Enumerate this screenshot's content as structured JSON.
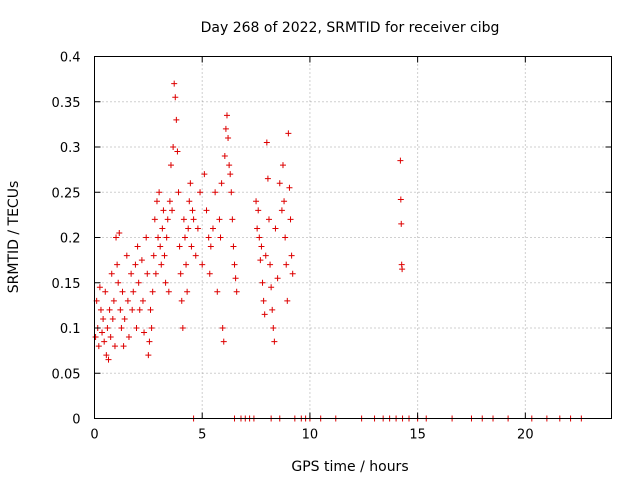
{
  "chart_data": {
    "type": "scatter",
    "title": "Day 268 of 2022, SRMTID for receiver cibg",
    "xlabel": "GPS time / hours",
    "ylabel": "SRMTID / TECUs",
    "xlim": [
      0,
      24
    ],
    "ylim": [
      0,
      0.4
    ],
    "xticks": [
      0,
      5,
      10,
      15,
      20
    ],
    "yticks": [
      0,
      0.05,
      0.1,
      0.15,
      0.2,
      0.25,
      0.3,
      0.35,
      0.4
    ],
    "xtick_labels": [
      "0",
      "5",
      "10",
      "15",
      "20"
    ],
    "ytick_labels": [
      "0",
      "0.05",
      "0.1",
      "0.15",
      "0.2",
      "0.25",
      "0.3",
      "0.35",
      "0.4"
    ],
    "grid": true,
    "marker": "+",
    "color": "#dd0000",
    "series": [
      {
        "name": "SRMTID",
        "points": [
          [
            0.05,
            0.09
          ],
          [
            0.1,
            0.13
          ],
          [
            0.15,
            0.1
          ],
          [
            0.2,
            0.08
          ],
          [
            0.25,
            0.145
          ],
          [
            0.3,
            0.12
          ],
          [
            0.35,
            0.095
          ],
          [
            0.4,
            0.11
          ],
          [
            0.45,
            0.085
          ],
          [
            0.5,
            0.14
          ],
          [
            0.55,
            0.07
          ],
          [
            0.6,
            0.1
          ],
          [
            0.65,
            0.065
          ],
          [
            0.7,
            0.12
          ],
          [
            0.75,
            0.09
          ],
          [
            0.8,
            0.16
          ],
          [
            0.85,
            0.11
          ],
          [
            0.9,
            0.13
          ],
          [
            0.95,
            0.08
          ],
          [
            1.0,
            0.2
          ],
          [
            1.05,
            0.17
          ],
          [
            1.1,
            0.15
          ],
          [
            1.15,
            0.205
          ],
          [
            1.2,
            0.12
          ],
          [
            1.25,
            0.1
          ],
          [
            1.3,
            0.14
          ],
          [
            1.35,
            0.08
          ],
          [
            1.4,
            0.11
          ],
          [
            1.5,
            0.18
          ],
          [
            1.55,
            0.13
          ],
          [
            1.6,
            0.09
          ],
          [
            1.7,
            0.16
          ],
          [
            1.75,
            0.12
          ],
          [
            1.8,
            0.14
          ],
          [
            1.9,
            0.17
          ],
          [
            1.95,
            0.1
          ],
          [
            2.0,
            0.19
          ],
          [
            2.05,
            0.15
          ],
          [
            2.1,
            0.12
          ],
          [
            2.2,
            0.175
          ],
          [
            2.25,
            0.13
          ],
          [
            2.3,
            0.095
          ],
          [
            2.4,
            0.2
          ],
          [
            2.45,
            0.16
          ],
          [
            2.5,
            0.07
          ],
          [
            2.55,
            0.085
          ],
          [
            2.6,
            0.12
          ],
          [
            2.65,
            0.1
          ],
          [
            2.7,
            0.14
          ],
          [
            2.75,
            0.18
          ],
          [
            2.8,
            0.22
          ],
          [
            2.85,
            0.16
          ],
          [
            2.9,
            0.24
          ],
          [
            2.95,
            0.2
          ],
          [
            3.0,
            0.25
          ],
          [
            3.05,
            0.19
          ],
          [
            3.1,
            0.17
          ],
          [
            3.15,
            0.21
          ],
          [
            3.2,
            0.23
          ],
          [
            3.25,
            0.18
          ],
          [
            3.3,
            0.15
          ],
          [
            3.35,
            0.2
          ],
          [
            3.4,
            0.22
          ],
          [
            3.45,
            0.14
          ],
          [
            3.5,
            0.24
          ],
          [
            3.55,
            0.28
          ],
          [
            3.6,
            0.23
          ],
          [
            3.65,
            0.3
          ],
          [
            3.7,
            0.37
          ],
          [
            3.75,
            0.355
          ],
          [
            3.8,
            0.33
          ],
          [
            3.85,
            0.295
          ],
          [
            3.9,
            0.25
          ],
          [
            3.95,
            0.19
          ],
          [
            4.0,
            0.16
          ],
          [
            4.05,
            0.13
          ],
          [
            4.1,
            0.1
          ],
          [
            4.15,
            0.22
          ],
          [
            4.2,
            0.2
          ],
          [
            4.25,
            0.17
          ],
          [
            4.3,
            0.14
          ],
          [
            4.35,
            0.21
          ],
          [
            4.4,
            0.24
          ],
          [
            4.45,
            0.26
          ],
          [
            4.5,
            0.19
          ],
          [
            4.55,
            0.23
          ],
          [
            4.6,
            0.22
          ],
          [
            4.7,
            0.18
          ],
          [
            4.8,
            0.21
          ],
          [
            4.9,
            0.25
          ],
          [
            5.0,
            0.17
          ],
          [
            5.1,
            0.27
          ],
          [
            5.2,
            0.23
          ],
          [
            5.3,
            0.2
          ],
          [
            5.35,
            0.16
          ],
          [
            5.4,
            0.19
          ],
          [
            5.5,
            0.21
          ],
          [
            5.6,
            0.25
          ],
          [
            5.7,
            0.14
          ],
          [
            5.8,
            0.22
          ],
          [
            5.85,
            0.2
          ],
          [
            5.9,
            0.26
          ],
          [
            5.95,
            0.1
          ],
          [
            6.0,
            0.085
          ],
          [
            6.05,
            0.29
          ],
          [
            6.1,
            0.32
          ],
          [
            6.15,
            0.335
          ],
          [
            6.2,
            0.31
          ],
          [
            6.25,
            0.28
          ],
          [
            6.3,
            0.27
          ],
          [
            6.35,
            0.25
          ],
          [
            6.4,
            0.22
          ],
          [
            6.45,
            0.19
          ],
          [
            6.5,
            0.17
          ],
          [
            6.55,
            0.155
          ],
          [
            6.6,
            0.14
          ],
          [
            7.5,
            0.24
          ],
          [
            7.55,
            0.21
          ],
          [
            7.6,
            0.23
          ],
          [
            7.65,
            0.2
          ],
          [
            7.7,
            0.175
          ],
          [
            7.75,
            0.19
          ],
          [
            7.8,
            0.15
          ],
          [
            7.85,
            0.13
          ],
          [
            7.9,
            0.115
          ],
          [
            7.95,
            0.18
          ],
          [
            8.0,
            0.305
          ],
          [
            8.05,
            0.265
          ],
          [
            8.1,
            0.22
          ],
          [
            8.15,
            0.17
          ],
          [
            8.2,
            0.145
          ],
          [
            8.25,
            0.12
          ],
          [
            8.3,
            0.1
          ],
          [
            8.35,
            0.085
          ],
          [
            8.4,
            0.21
          ],
          [
            8.5,
            0.155
          ],
          [
            8.6,
            0.26
          ],
          [
            8.7,
            0.23
          ],
          [
            8.75,
            0.28
          ],
          [
            8.8,
            0.24
          ],
          [
            8.85,
            0.2
          ],
          [
            8.9,
            0.17
          ],
          [
            8.95,
            0.13
          ],
          [
            9.0,
            0.315
          ],
          [
            9.05,
            0.255
          ],
          [
            9.1,
            0.22
          ],
          [
            9.15,
            0.18
          ],
          [
            9.2,
            0.16
          ],
          [
            14.2,
            0.285
          ],
          [
            14.22,
            0.242
          ],
          [
            14.24,
            0.215
          ],
          [
            14.26,
            0.17
          ],
          [
            14.28,
            0.165
          ],
          [
            4.6,
            0
          ],
          [
            6.5,
            0
          ],
          [
            6.8,
            0
          ],
          [
            7.0,
            0
          ],
          [
            7.2,
            0
          ],
          [
            7.4,
            0
          ],
          [
            8.2,
            0
          ],
          [
            8.6,
            0
          ],
          [
            9.3,
            0
          ],
          [
            9.6,
            0
          ],
          [
            9.8,
            0
          ],
          [
            10.0,
            0
          ],
          [
            10.5,
            0
          ],
          [
            11.2,
            0
          ],
          [
            12.4,
            0
          ],
          [
            13.0,
            0
          ],
          [
            13.4,
            0
          ],
          [
            13.7,
            0
          ],
          [
            14.0,
            0
          ],
          [
            14.3,
            0
          ],
          [
            14.6,
            0
          ],
          [
            15.0,
            0
          ],
          [
            15.4,
            0
          ],
          [
            16.6,
            0
          ],
          [
            17.5,
            0
          ],
          [
            18.0,
            0
          ],
          [
            18.5,
            0
          ],
          [
            19.2,
            0
          ],
          [
            20.3,
            0
          ],
          [
            21.0,
            0
          ],
          [
            21.6,
            0
          ],
          [
            22.1,
            0
          ],
          [
            22.6,
            0
          ]
        ]
      }
    ]
  }
}
